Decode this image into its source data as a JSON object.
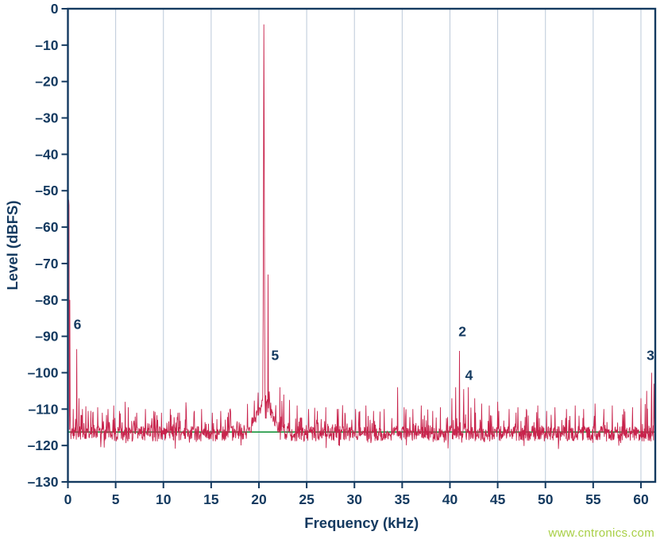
{
  "watermark": {
    "text": "www.cntronics.com",
    "color": "#a8cf45"
  },
  "colors": {
    "axis": "#143a60",
    "grid": "#bcc9d9",
    "trace": "#c8234c",
    "reference_green": "#17953c",
    "background": "#ffffff"
  },
  "chart_data": {
    "type": "line",
    "title": "",
    "xlabel": "Frequency (kHz)",
    "ylabel": "Level (dBFS)",
    "xlim": [
      0,
      61.5
    ],
    "ylim": [
      -130,
      0
    ],
    "grid": "vertical-only",
    "legend": "none",
    "xtick_values": [
      0,
      5,
      10,
      15,
      20,
      25,
      30,
      35,
      40,
      45,
      50,
      55,
      60
    ],
    "xtick_labels": [
      "0",
      "5",
      "10",
      "15",
      "20",
      "25",
      "30",
      "35",
      "40",
      "45",
      "50",
      "55",
      "60"
    ],
    "ytick_values": [
      0,
      -10,
      -20,
      -30,
      -40,
      -50,
      -60,
      -70,
      -80,
      -90,
      -100,
      -110,
      -120,
      -130
    ],
    "ytick_labels": [
      "0",
      "–10",
      "–20",
      "–30",
      "–40",
      "–50",
      "–60",
      "–70",
      "–80",
      "–90",
      "–100",
      "–110",
      "–120",
      "–130"
    ],
    "noise_floor_dbfs": -116.5,
    "noise_band_db": 4.2,
    "reference_line": {
      "level_dbfs": -116.3
    },
    "main_tone": {
      "freq_khz": 20.5,
      "level_dbfs": -4.3
    },
    "signal_skirt": {
      "center_khz": 20.6,
      "sigma_khz": 1.2,
      "peak_rise_db": 8.5
    },
    "spurs": [
      [
        0.04,
        -70
      ],
      [
        0.08,
        -52.5
      ],
      [
        0.12,
        -54
      ],
      [
        0.2,
        -80
      ],
      [
        0.55,
        -110
      ],
      [
        0.9,
        -93.5
      ],
      [
        1.15,
        -107
      ],
      [
        1.5,
        -110
      ],
      [
        2.1,
        -110.5
      ],
      [
        2.6,
        -111
      ],
      [
        3.1,
        -109.5
      ],
      [
        3.6,
        -111
      ],
      [
        4.2,
        -110
      ],
      [
        4.8,
        -109
      ],
      [
        5.4,
        -110.5
      ],
      [
        6.0,
        -108
      ],
      [
        6.3,
        -109.5
      ],
      [
        7.2,
        -111
      ],
      [
        8.1,
        -110
      ],
      [
        9.0,
        -110.5
      ],
      [
        9.8,
        -111
      ],
      [
        10.7,
        -110
      ],
      [
        11.5,
        -111
      ],
      [
        12.4,
        -110.5
      ],
      [
        13.2,
        -111
      ],
      [
        14.0,
        -110
      ],
      [
        15.1,
        -111
      ],
      [
        16.0,
        -110.5
      ],
      [
        17.0,
        -110
      ],
      [
        20.95,
        -73
      ],
      [
        22.2,
        -104
      ],
      [
        22.6,
        -106
      ],
      [
        23.2,
        -107.5
      ],
      [
        24.0,
        -109
      ],
      [
        25.2,
        -110
      ],
      [
        26.1,
        -110.5
      ],
      [
        27.0,
        -109.5
      ],
      [
        28.2,
        -110
      ],
      [
        29.0,
        -111
      ],
      [
        30.1,
        -110
      ],
      [
        31.2,
        -109
      ],
      [
        32.0,
        -110.5
      ],
      [
        33.1,
        -110
      ],
      [
        34.5,
        -104
      ],
      [
        35.2,
        -109.5
      ],
      [
        36.1,
        -110
      ],
      [
        37.0,
        -109
      ],
      [
        38.2,
        -110.5
      ],
      [
        39.0,
        -109.5
      ],
      [
        40.2,
        -107
      ],
      [
        40.6,
        -104
      ],
      [
        41.0,
        -94
      ],
      [
        41.45,
        -104.5
      ],
      [
        41.9,
        -104
      ],
      [
        42.6,
        -107
      ],
      [
        43.3,
        -108.5
      ],
      [
        44.1,
        -109
      ],
      [
        45.0,
        -108
      ],
      [
        46.2,
        -110
      ],
      [
        47.1,
        -109.5
      ],
      [
        48.0,
        -110
      ],
      [
        49.2,
        -109
      ],
      [
        50.1,
        -110.5
      ],
      [
        51.0,
        -109.5
      ],
      [
        52.2,
        -110
      ],
      [
        53.1,
        -109
      ],
      [
        54.0,
        -110
      ],
      [
        55.2,
        -108.5
      ],
      [
        56.1,
        -110
      ],
      [
        57.0,
        -109
      ],
      [
        58.2,
        -110
      ],
      [
        59.1,
        -109.5
      ],
      [
        60.0,
        -107
      ],
      [
        60.6,
        -105
      ],
      [
        61.1,
        -100
      ],
      [
        61.35,
        -103
      ]
    ],
    "annotations": [
      {
        "label": "6",
        "freq_khz": 1.0,
        "level_dbfs": -88
      },
      {
        "label": "5",
        "freq_khz": 21.7,
        "level_dbfs": -96.5
      },
      {
        "label": "2",
        "freq_khz": 41.3,
        "level_dbfs": -90
      },
      {
        "label": "4",
        "freq_khz": 42.0,
        "level_dbfs": -102
      },
      {
        "label": "3",
        "freq_khz": 61.0,
        "level_dbfs": -96.5
      }
    ]
  }
}
